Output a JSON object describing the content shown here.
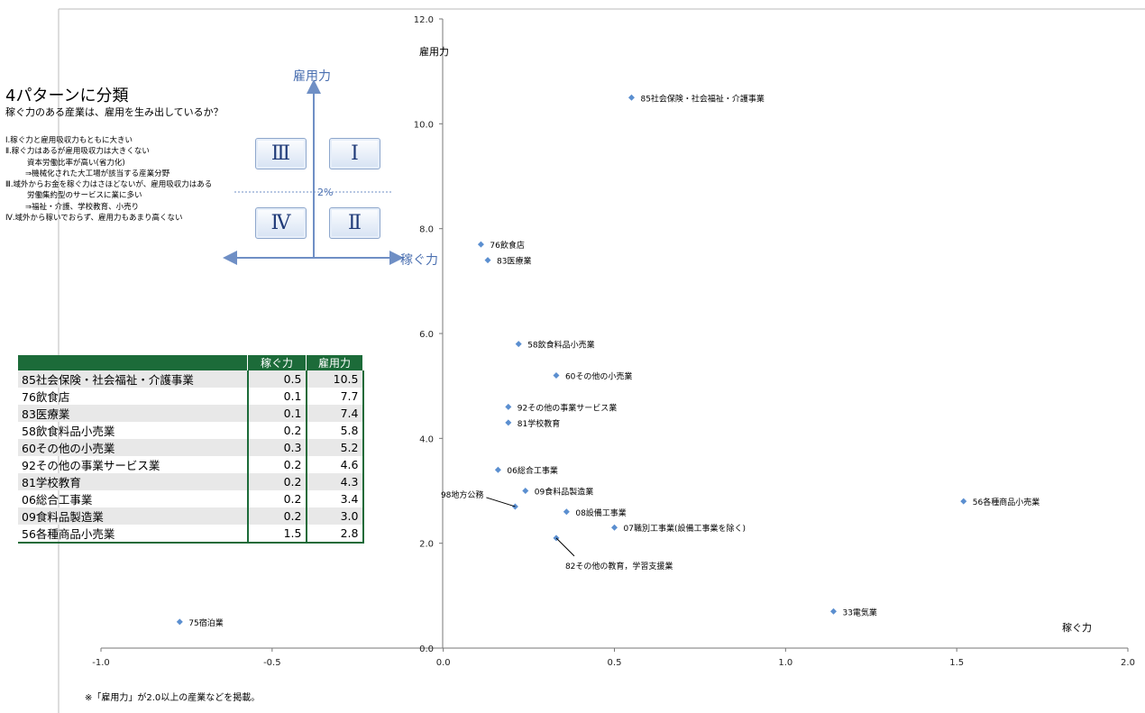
{
  "chart_data": {
    "type": "scatter",
    "xlabel": "稼ぐ力",
    "ylabel": "雇用力",
    "xlim": [
      -1.0,
      2.0
    ],
    "ylim": [
      0.0,
      12.0
    ],
    "x_ticks": [
      "-1.0",
      "-0.5",
      "0.0",
      "0.5",
      "1.0",
      "1.5",
      "2.0"
    ],
    "y_ticks": [
      "0.0",
      "2.0",
      "4.0",
      "6.0",
      "8.0",
      "10.0",
      "12.0"
    ],
    "marker_color": "#5b8fd0",
    "points": [
      {
        "label": "85社会保険・社会福祉・介護事業",
        "x": 0.55,
        "y": 10.5
      },
      {
        "label": "76飲食店",
        "x": 0.11,
        "y": 7.7
      },
      {
        "label": "83医療業",
        "x": 0.13,
        "y": 7.4
      },
      {
        "label": "58飲食料品小売業",
        "x": 0.22,
        "y": 5.8
      },
      {
        "label": "60その他の小売業",
        "x": 0.33,
        "y": 5.2
      },
      {
        "label": "92その他の事業サービス業",
        "x": 0.19,
        "y": 4.6
      },
      {
        "label": "81学校教育",
        "x": 0.19,
        "y": 4.3
      },
      {
        "label": "06総合工事業",
        "x": 0.16,
        "y": 3.4
      },
      {
        "label": "09食料品製造業",
        "x": 0.24,
        "y": 3.0
      },
      {
        "label": "98地方公務",
        "x": 0.21,
        "y": 2.7
      },
      {
        "label": "08設備工事業",
        "x": 0.36,
        "y": 2.6
      },
      {
        "label": "07職別工事業(設備工事業を除く)",
        "x": 0.5,
        "y": 2.3
      },
      {
        "label": "82その他の教育，学習支援業",
        "x": 0.33,
        "y": 2.1
      },
      {
        "label": "56各種商品小売業",
        "x": 1.52,
        "y": 2.8
      },
      {
        "label": "33電気業",
        "x": 1.14,
        "y": 0.7
      },
      {
        "label": "75宿泊業",
        "x": -0.77,
        "y": 0.5
      }
    ]
  },
  "panel": {
    "title": "4パターンに分類",
    "subtitle": "稼ぐ力のある産業は、雇用を生み出しているか？",
    "desc": [
      "Ⅰ.稼ぐ力と雇用吸収力もともに大きい",
      "Ⅱ.稼ぐ力はあるが雇用吸収力は大きくない",
      "資本労働比率が高い(省力化)",
      "⇒機械化された大工場が該当する産業分野",
      "Ⅲ.域外からお金を稼ぐ力はさほどないが、雇用吸収力はある",
      "労働集約型のサービスに業に多い",
      "⇒福祉・介護、学校教育、小売り",
      "Ⅳ.域外から稼いでおらず、雇用力もあまり高くない"
    ],
    "quadrants": {
      "q1": "Ⅰ",
      "q2": "Ⅱ",
      "q3": "Ⅲ",
      "q4": "Ⅳ"
    },
    "axis_y": "雇用力",
    "axis_x": "稼ぐ力",
    "threshold": "2%"
  },
  "table": {
    "headers": [
      "",
      "稼ぐ力",
      "雇用力"
    ],
    "rows": [
      [
        "85社会保険・社会福祉・介護事業",
        "0.5",
        "10.5"
      ],
      [
        "76飲食店",
        "0.1",
        "7.7"
      ],
      [
        "83医療業",
        "0.1",
        "7.4"
      ],
      [
        "58飲食料品小売業",
        "0.2",
        "5.8"
      ],
      [
        "60その他の小売業",
        "0.3",
        "5.2"
      ],
      [
        "92その他の事業サービス業",
        "0.2",
        "4.6"
      ],
      [
        "81学校教育",
        "0.2",
        "4.3"
      ],
      [
        "06総合工事業",
        "0.2",
        "3.4"
      ],
      [
        "09食料品製造業",
        "0.2",
        "3.0"
      ],
      [
        "56各種商品小売業",
        "1.5",
        "2.8"
      ]
    ]
  },
  "note": "※「雇用力」が2.0以上の産業などを掲載。"
}
